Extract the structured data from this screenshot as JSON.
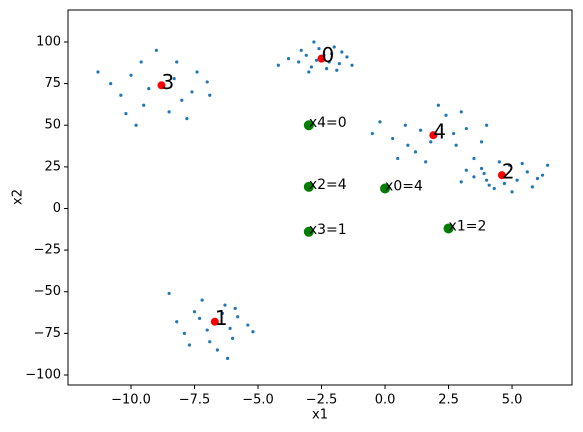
{
  "chart_data": {
    "type": "scatter",
    "xlabel": "x1",
    "ylabel": "x2",
    "xlim": [
      -12.48,
      7.36
    ],
    "ylim": [
      -106,
      119.2
    ],
    "xticks": [
      {
        "value": -10,
        "label": "−10.0"
      },
      {
        "value": -7.5,
        "label": "−7.5"
      },
      {
        "value": -5,
        "label": "−5.0"
      },
      {
        "value": -2.5,
        "label": "−2.5"
      },
      {
        "value": 0,
        "label": "0.0"
      },
      {
        "value": 2.5,
        "label": "2.5"
      },
      {
        "value": 5,
        "label": "5.0"
      }
    ],
    "yticks": [
      {
        "value": -100,
        "label": "−100"
      },
      {
        "value": -75,
        "label": "−75"
      },
      {
        "value": -50,
        "label": "−50"
      },
      {
        "value": -25,
        "label": "−25"
      },
      0,
      25,
      50,
      75,
      100
    ],
    "series": [
      {
        "color": "#1f77b4",
        "size": 1.6,
        "x": [
          -3.4,
          -2.1,
          -2.9,
          -1.8,
          -2.6,
          -3.1,
          -2.3,
          -1.5,
          -3.8,
          -2.0,
          -2.7,
          -1.9,
          -3.3,
          -2.4,
          -4.2,
          -1.3,
          -2.8,
          -3.0,
          -2.2,
          -1.7,
          -6.7,
          -7.5,
          -6.1,
          -7.9,
          -5.8,
          -6.9,
          -7.2,
          -6.3,
          -5.4,
          -8.2,
          -6.6,
          -7.0,
          -6.0,
          -7.7,
          -5.2,
          -6.4,
          -8.5,
          -6.2,
          -7.3,
          -5.9,
          4.6,
          3.8,
          5.2,
          4.1,
          5.6,
          3.5,
          4.9,
          4.3,
          6.0,
          5.0,
          3.2,
          4.7,
          6.4,
          5.4,
          3.0,
          4.5,
          5.8,
          3.9,
          6.2,
          4.0,
          -8.8,
          -10.0,
          -7.6,
          -9.5,
          -8.2,
          -11.3,
          -7.0,
          -9.8,
          -8.5,
          -9.0,
          -7.4,
          -10.4,
          -8.0,
          -9.3,
          -7.8,
          -10.8,
          -6.9,
          -9.6,
          -8.3,
          -10.2,
          1.9,
          0.8,
          2.8,
          1.2,
          3.2,
          0.3,
          2.4,
          1.6,
          3.8,
          -0.2,
          2.1,
          0.9,
          3.5,
          1.4,
          2.7,
          -0.5,
          3.0,
          1.8,
          4.0,
          0.5
        ],
        "values": [
          88,
          93,
          85,
          87,
          96,
          92,
          84,
          91,
          90,
          97,
          89,
          83,
          95,
          92,
          86,
          86,
          100,
          82,
          88,
          94,
          -68,
          -62,
          -72,
          -75,
          -65,
          -80,
          -55,
          -58,
          -70,
          -68,
          -85,
          -73,
          -78,
          -82,
          -74,
          -63,
          -51,
          -90,
          -66,
          -60,
          20,
          24,
          17,
          14,
          22,
          19,
          26,
          12,
          18,
          10,
          23,
          15,
          26,
          27,
          16,
          28,
          13,
          21,
          20,
          17,
          74,
          80,
          70,
          62,
          88,
          82,
          76,
          50,
          58,
          95,
          82,
          68,
          65,
          72,
          54,
          75,
          68,
          88,
          78,
          57,
          44,
          50,
          38,
          34,
          48,
          42,
          56,
          28,
          40,
          52,
          62,
          38,
          30,
          47,
          45,
          45,
          58,
          40,
          50,
          30
        ]
      },
      {
        "color": "#ff0000",
        "size": 4,
        "label_size": 20,
        "x": [
          -2.5,
          -6.7,
          4.6,
          -8.8,
          1.9
        ],
        "values": [
          90,
          -68,
          20,
          74,
          44
        ],
        "point_labels": [
          "0",
          "1",
          "2",
          "3",
          "4"
        ]
      },
      {
        "color": "#008000",
        "size": 5,
        "label_size": 14,
        "x": [
          0,
          2.5,
          -3,
          -3,
          -3
        ],
        "values": [
          12,
          -12,
          13,
          -14,
          50
        ],
        "point_labels": [
          "x0=4",
          "x1=2",
          "x2=4",
          "x3=1",
          "x4=0"
        ]
      }
    ]
  }
}
